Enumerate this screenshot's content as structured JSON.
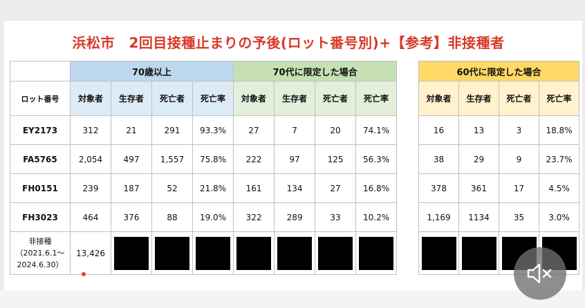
{
  "title": "浜松市　2回目接種止まりの予後(ロット番号別)+【参考】非接種者",
  "groups": {
    "g70plus": "70歳以上",
    "g70s": "70代に限定した場合",
    "g60s": "60代に限定した場合"
  },
  "columns": {
    "lot": "ロット番号",
    "subjects": "対象者",
    "survivors": "生存者",
    "deaths": "死亡者",
    "rate": "死亡率"
  },
  "rows": [
    {
      "lot": "EY2173",
      "a": [
        "312",
        "21",
        "291",
        "93.3%"
      ],
      "b": [
        "27",
        "7",
        "20",
        "74.1%"
      ],
      "c": [
        "16",
        "13",
        "3",
        "18.8%"
      ]
    },
    {
      "lot": "FA5765",
      "a": [
        "2,054",
        "497",
        "1,557",
        "75.8%"
      ],
      "b": [
        "222",
        "97",
        "125",
        "56.3%"
      ],
      "c": [
        "38",
        "29",
        "9",
        "23.7%"
      ]
    },
    {
      "lot": "FH0151",
      "a": [
        "239",
        "187",
        "52",
        "21.8%"
      ],
      "b": [
        "161",
        "134",
        "27",
        "16.8%"
      ],
      "c": [
        "378",
        "361",
        "17",
        "4.5%"
      ]
    },
    {
      "lot": "FH3023",
      "a": [
        "464",
        "376",
        "88",
        "19.0%"
      ],
      "b": [
        "322",
        "289",
        "33",
        "10.2%"
      ],
      "c": [
        "1,169",
        "1134",
        "35",
        "3.0%"
      ]
    }
  ],
  "nonvax": {
    "label": "非接種",
    "period_start": "（2021.6.1～",
    "period_end": "2024.6.30）",
    "subjects": "13,426"
  },
  "colors": {
    "title": "#d63a2a",
    "blue_header": "#bdd7ee",
    "green_header": "#c6e0b4",
    "yellow_header": "#ffd966"
  },
  "icons": {
    "mute": "speaker-muted-icon"
  }
}
